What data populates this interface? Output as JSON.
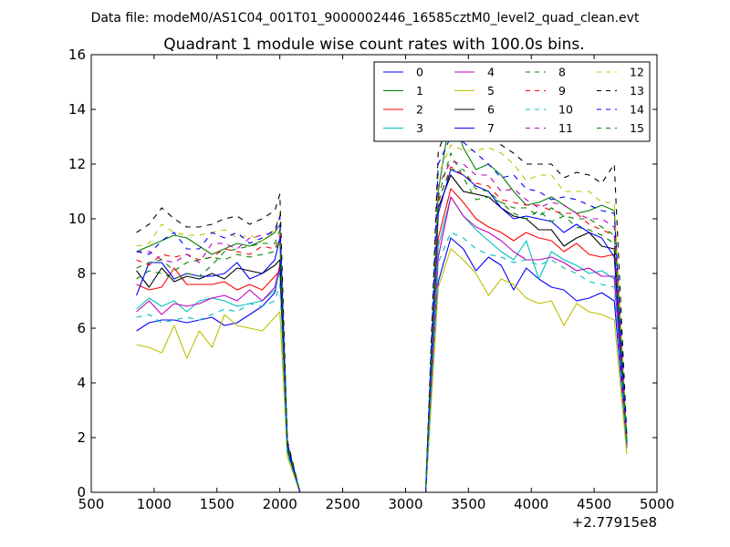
{
  "suptitle": "Data file: modeM0/AS1C04_001T01_9000002446_16585cztM0_level2_quad_clean.evt",
  "chart_data": {
    "type": "line",
    "title": "Quadrant 1 module wise count rates with 100.0s bins.",
    "xlabel": "",
    "ylabel": "",
    "x_offset_label": "+2.77915e8",
    "xlim": [
      500,
      5000
    ],
    "ylim": [
      0,
      16
    ],
    "xticks": [
      500,
      1000,
      1500,
      2000,
      2500,
      3000,
      3500,
      4000,
      4500,
      5000
    ],
    "yticks": [
      0,
      2,
      4,
      6,
      8,
      10,
      12,
      14,
      16
    ],
    "x": [
      860,
      960,
      1060,
      1160,
      1260,
      1360,
      1460,
      1560,
      1660,
      1760,
      1860,
      1960,
      2000,
      2060,
      2160,
      2260,
      2360,
      2460,
      2560,
      2660,
      2760,
      2860,
      2960,
      3060,
      3160,
      3260,
      3360,
      3460,
      3560,
      3660,
      3760,
      3860,
      3960,
      4060,
      4160,
      4260,
      4360,
      4460,
      4560,
      4660,
      4760
    ],
    "series": [
      {
        "name": "0",
        "color": "#0000ff",
        "dash": "solid",
        "values": [
          5.9,
          6.2,
          6.3,
          6.3,
          6.2,
          6.3,
          6.4,
          6.1,
          6.2,
          6.5,
          6.8,
          7.3,
          8.2,
          1.5,
          0,
          0,
          0,
          0,
          0,
          0,
          0,
          0,
          0,
          0,
          0,
          7.7,
          9.3,
          8.9,
          8.1,
          8.6,
          8.3,
          7.4,
          8.2,
          7.8,
          7.5,
          7.4,
          7.0,
          7.1,
          7.3,
          7.0,
          1.7
        ]
      },
      {
        "name": "1",
        "color": "#008000",
        "dash": "solid",
        "values": [
          8.8,
          9.0,
          9.2,
          9.4,
          9.3,
          9.0,
          8.7,
          8.9,
          9.1,
          9.0,
          9.2,
          9.5,
          9.8,
          1.8,
          0,
          0,
          0,
          0,
          0,
          0,
          0,
          0,
          0,
          0,
          0,
          11.0,
          13.9,
          12.6,
          11.8,
          12.0,
          11.6,
          11.0,
          10.5,
          10.6,
          10.8,
          10.5,
          10.2,
          10.3,
          10.5,
          10.3,
          1.9
        ]
      },
      {
        "name": "2",
        "color": "#ff0000",
        "dash": "solid",
        "values": [
          7.6,
          7.4,
          7.5,
          8.2,
          7.6,
          7.6,
          7.6,
          7.7,
          7.4,
          7.6,
          7.4,
          7.9,
          8.1,
          1.5,
          0,
          0,
          0,
          0,
          0,
          0,
          0,
          0,
          0,
          0,
          0,
          9.3,
          11.1,
          10.6,
          10.0,
          9.7,
          9.5,
          9.2,
          9.5,
          9.3,
          9.2,
          8.8,
          9.1,
          8.7,
          8.6,
          8.7,
          1.7
        ]
      },
      {
        "name": "3",
        "color": "#00bfbf",
        "dash": "solid",
        "values": [
          6.7,
          7.1,
          6.8,
          7.0,
          6.6,
          7.0,
          7.1,
          7.0,
          6.8,
          6.9,
          7.0,
          7.4,
          8.1,
          1.5,
          0,
          0,
          0,
          0,
          0,
          0,
          0,
          0,
          0,
          0,
          0,
          9.0,
          10.8,
          10.1,
          9.6,
          9.2,
          8.8,
          8.5,
          9.2,
          7.8,
          8.8,
          8.5,
          8.3,
          8.0,
          8.1,
          7.8,
          1.6
        ]
      },
      {
        "name": "4",
        "color": "#bf00bf",
        "dash": "solid",
        "values": [
          6.6,
          7.0,
          6.5,
          6.9,
          6.8,
          6.9,
          7.1,
          7.2,
          7.0,
          7.4,
          7.0,
          7.5,
          8.3,
          1.6,
          0,
          0,
          0,
          0,
          0,
          0,
          0,
          0,
          0,
          0,
          0,
          8.6,
          10.8,
          10.1,
          9.7,
          9.5,
          9.2,
          8.8,
          8.5,
          8.5,
          8.6,
          8.4,
          8.1,
          8.2,
          7.9,
          7.9,
          1.6
        ]
      },
      {
        "name": "5",
        "color": "#bfbf00",
        "dash": "solid",
        "values": [
          5.4,
          5.3,
          5.1,
          6.1,
          4.9,
          5.9,
          5.3,
          6.5,
          6.1,
          6.0,
          5.9,
          6.4,
          6.6,
          1.3,
          0,
          0,
          0,
          0,
          0,
          0,
          0,
          0,
          0,
          0,
          0,
          7.5,
          8.9,
          8.5,
          8.0,
          7.2,
          7.8,
          7.6,
          7.1,
          6.9,
          7.0,
          6.1,
          6.9,
          6.6,
          6.5,
          6.3,
          1.4
        ]
      },
      {
        "name": "6",
        "color": "#000000",
        "dash": "solid",
        "values": [
          8.1,
          7.5,
          8.2,
          7.7,
          7.9,
          7.8,
          8.0,
          7.8,
          8.2,
          8.1,
          8.0,
          8.3,
          8.5,
          1.6,
          0,
          0,
          0,
          0,
          0,
          0,
          0,
          0,
          0,
          0,
          0,
          10.4,
          11.6,
          11.0,
          10.9,
          10.8,
          10.4,
          10.1,
          10.0,
          9.6,
          9.6,
          9.0,
          9.3,
          9.5,
          9.0,
          8.9,
          1.8
        ]
      },
      {
        "name": "7",
        "color": "#0000ff",
        "dash": "solid",
        "values": [
          7.2,
          8.4,
          8.4,
          7.8,
          8.0,
          7.9,
          7.9,
          8.0,
          8.4,
          7.8,
          8.0,
          8.5,
          9.3,
          1.7,
          0,
          0,
          0,
          0,
          0,
          0,
          0,
          0,
          0,
          0,
          0,
          10.2,
          11.8,
          11.6,
          11.2,
          11.0,
          10.4,
          10.0,
          10.1,
          10.0,
          9.9,
          9.5,
          9.8,
          9.5,
          9.3,
          8.6,
          1.8
        ]
      },
      {
        "name": "8",
        "color": "#008000",
        "dash": "dashed",
        "values": [
          7.8,
          8.1,
          8.0,
          7.8,
          8.0,
          7.9,
          8.3,
          8.8,
          8.9,
          9.0,
          9.1,
          9.1,
          9.6,
          1.8,
          0,
          0,
          0,
          0,
          0,
          0,
          0,
          0,
          0,
          0,
          0,
          10.8,
          12.4,
          11.5,
          10.7,
          10.8,
          10.6,
          10.2,
          10.0,
          10.3,
          9.9,
          10.1,
          9.7,
          9.6,
          9.4,
          9.1,
          1.9
        ]
      },
      {
        "name": "9",
        "color": "#ff0000",
        "dash": "dashed",
        "values": [
          8.5,
          8.3,
          8.7,
          8.6,
          8.7,
          8.5,
          8.6,
          8.9,
          8.8,
          8.7,
          9.0,
          8.9,
          9.4,
          1.7,
          0,
          0,
          0,
          0,
          0,
          0,
          0,
          0,
          0,
          0,
          0,
          10.6,
          11.9,
          11.6,
          11.3,
          11.2,
          10.7,
          10.6,
          10.5,
          10.5,
          10.3,
          10.2,
          10.2,
          9.8,
          9.6,
          9.4,
          1.8
        ]
      },
      {
        "name": "10",
        "color": "#00bfbf",
        "dash": "dashed",
        "values": [
          6.4,
          6.5,
          6.2,
          6.3,
          6.4,
          6.3,
          6.5,
          6.7,
          6.6,
          6.9,
          6.8,
          7.0,
          7.6,
          1.4,
          0,
          0,
          0,
          0,
          0,
          0,
          0,
          0,
          0,
          0,
          0,
          8.4,
          9.5,
          9.3,
          8.9,
          8.7,
          8.6,
          8.4,
          8.5,
          8.3,
          8.5,
          8.2,
          8.0,
          7.7,
          7.6,
          7.5,
          1.6
        ]
      },
      {
        "name": "11",
        "color": "#bf00bf",
        "dash": "dashed",
        "values": [
          8.8,
          8.8,
          8.5,
          8.4,
          8.7,
          8.4,
          9.1,
          9.1,
          8.9,
          9.3,
          9.4,
          9.5,
          10.1,
          1.8,
          0,
          0,
          0,
          0,
          0,
          0,
          0,
          0,
          0,
          0,
          0,
          11.2,
          12.1,
          12.0,
          11.6,
          11.6,
          11.0,
          11.1,
          10.7,
          10.4,
          10.6,
          10.5,
          10.2,
          10.0,
          10.0,
          9.7,
          2.0
        ]
      },
      {
        "name": "12",
        "color": "#bfbf00",
        "dash": "dashed",
        "values": [
          9.0,
          9.1,
          9.8,
          9.5,
          9.4,
          9.4,
          9.5,
          9.6,
          9.3,
          9.4,
          9.2,
          9.6,
          10.2,
          1.8,
          0,
          0,
          0,
          0,
          0,
          0,
          0,
          0,
          0,
          0,
          0,
          11.6,
          12.7,
          12.5,
          12.5,
          12.6,
          12.4,
          12.0,
          11.4,
          11.6,
          11.6,
          11.0,
          11.0,
          11.0,
          10.6,
          10.6,
          2.0
        ]
      },
      {
        "name": "13",
        "color": "#000000",
        "dash": "dashed",
        "values": [
          9.5,
          9.8,
          10.4,
          10.0,
          9.7,
          9.7,
          9.8,
          10.0,
          10.1,
          9.8,
          10.0,
          10.3,
          10.9,
          1.9,
          0,
          0,
          0,
          0,
          0,
          0,
          0,
          0,
          0,
          0,
          0,
          12.5,
          13.6,
          13.0,
          13.2,
          13.4,
          12.7,
          12.4,
          12.0,
          12.0,
          12.0,
          11.5,
          11.7,
          11.6,
          11.3,
          12.0,
          2.1
        ]
      },
      {
        "name": "14",
        "color": "#0000ff",
        "dash": "dashed",
        "values": [
          8.8,
          8.7,
          9.2,
          9.5,
          8.9,
          8.9,
          9.5,
          9.3,
          9.5,
          9.1,
          9.3,
          9.6,
          10.1,
          1.8,
          0,
          0,
          0,
          0,
          0,
          0,
          0,
          0,
          0,
          0,
          0,
          12.0,
          13.0,
          12.8,
          12.4,
          12.0,
          11.5,
          11.6,
          11.1,
          11.0,
          10.7,
          10.8,
          10.7,
          10.5,
          10.3,
          10.2,
          2.0
        ]
      },
      {
        "name": "15",
        "color": "#008000",
        "dash": "dashed",
        "values": [
          8.2,
          8.4,
          8.5,
          8.1,
          8.4,
          8.5,
          8.6,
          8.5,
          8.7,
          8.6,
          8.7,
          8.8,
          9.2,
          1.7,
          0,
          0,
          0,
          0,
          0,
          0,
          0,
          0,
          0,
          0,
          0,
          10.7,
          11.8,
          11.8,
          11.1,
          11.0,
          10.6,
          10.4,
          10.4,
          10.1,
          10.4,
          10.1,
          10.0,
          10.0,
          9.7,
          9.4,
          1.9
        ]
      }
    ],
    "legend": {
      "placement": "top-right",
      "columns": 4
    }
  }
}
